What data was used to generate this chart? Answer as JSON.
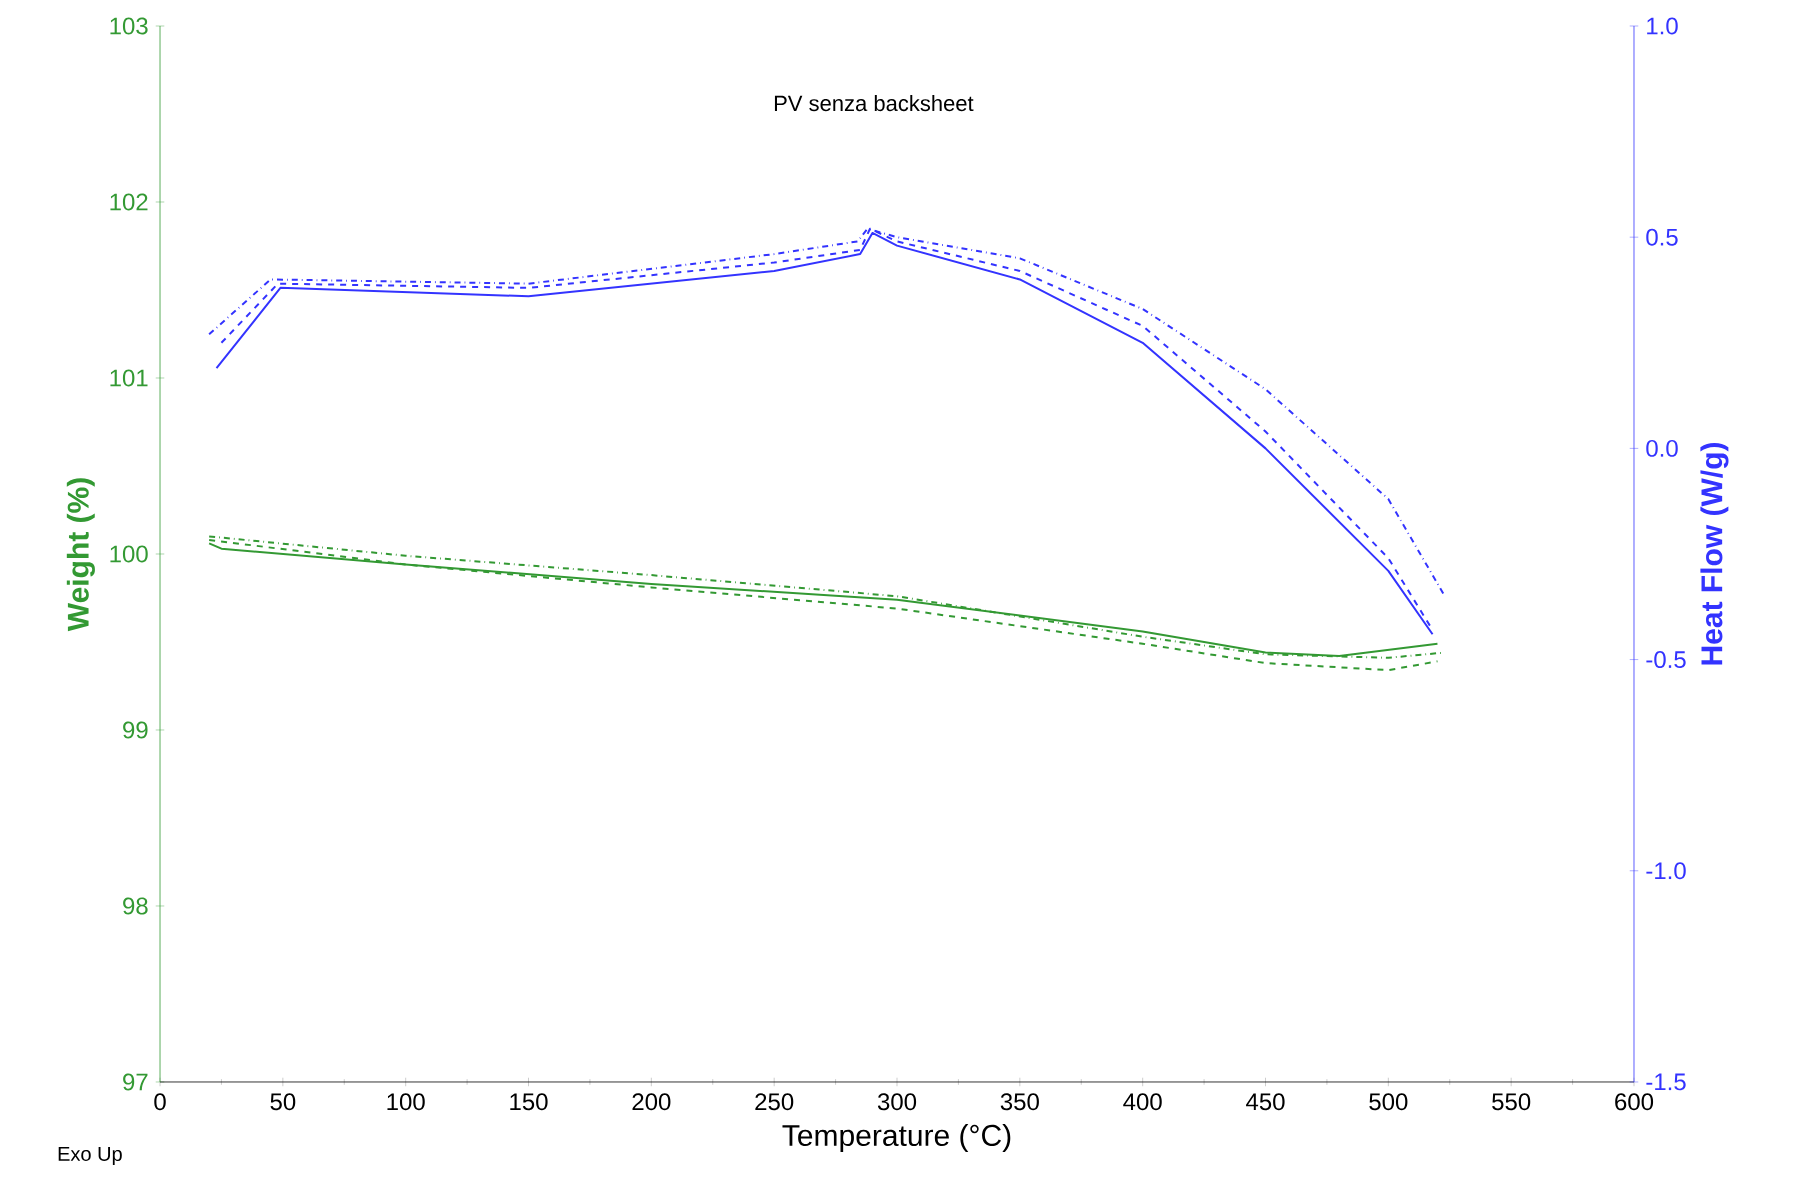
{
  "chart_data": {
    "type": "line",
    "title": "PV senza backsheet",
    "xlabel": "Temperature (°C)",
    "ylabel": "Weight (%)",
    "y2label": "Heat Flow (W/g)",
    "annotations": [
      "Exo Up"
    ],
    "xlim": [
      0,
      600
    ],
    "xticks": [
      0,
      50,
      100,
      150,
      200,
      250,
      300,
      350,
      400,
      450,
      500,
      550,
      600
    ],
    "ylim": [
      97,
      103
    ],
    "yticks": [
      97,
      98,
      99,
      100,
      101,
      102,
      103
    ],
    "y2lim": [
      -1.5,
      1.0
    ],
    "y2ticks": [
      -1.5,
      {
        "value": -1.0,
        "label": "-1.0"
      },
      -0.5,
      {
        "value": 0.0,
        "label": "0.0"
      },
      0.5,
      {
        "value": 1.0,
        "label": "1.0"
      }
    ],
    "marker": "none",
    "series": [
      {
        "color": "#339933",
        "line_style": "solid",
        "x": [
          20,
          25,
          100,
          200,
          300,
          400,
          450,
          480,
          520
        ],
        "values": [
          100.06,
          100.03,
          99.94,
          99.83,
          99.74,
          99.56,
          99.44,
          99.42,
          99.49
        ]
      },
      {
        "color": "#339933",
        "line_style": "dashed",
        "x": [
          20,
          100,
          200,
          300,
          400,
          450,
          500,
          520
        ],
        "values": [
          100.08,
          99.94,
          99.81,
          99.69,
          99.49,
          99.38,
          99.34,
          99.39
        ]
      },
      {
        "color": "#339933",
        "line_style": "dashdot",
        "x": [
          20,
          100,
          200,
          300,
          400,
          450,
          500,
          523
        ],
        "values": [
          100.1,
          99.99,
          99.88,
          99.76,
          99.53,
          99.43,
          99.41,
          99.44
        ]
      },
      {
        "color": "#3333ff",
        "axis": "y2",
        "line_style": "solid",
        "x": [
          23,
          49,
          150,
          250,
          285,
          290,
          300,
          350,
          400,
          450,
          500,
          518
        ],
        "values": [
          0.19,
          0.38,
          0.36,
          0.42,
          0.46,
          0.51,
          0.48,
          0.4,
          0.25,
          0.0,
          -0.29,
          -0.44
        ]
      },
      {
        "color": "#3333ff",
        "axis": "y2",
        "line_style": "dashed",
        "x": [
          25,
          48,
          150,
          250,
          285,
          289,
          300,
          350,
          400,
          450,
          500,
          518
        ],
        "values": [
          0.25,
          0.39,
          0.38,
          0.44,
          0.47,
          0.52,
          0.49,
          0.42,
          0.29,
          0.04,
          -0.26,
          -0.43
        ]
      },
      {
        "color": "#3333ff",
        "axis": "y2",
        "line_style": "dashdot",
        "x": [
          20,
          45,
          150,
          250,
          284,
          288,
          300,
          350,
          400,
          450,
          500,
          523
        ],
        "values": [
          0.27,
          0.4,
          0.39,
          0.46,
          0.49,
          0.52,
          0.5,
          0.45,
          0.33,
          0.14,
          -0.12,
          -0.35
        ]
      }
    ]
  }
}
